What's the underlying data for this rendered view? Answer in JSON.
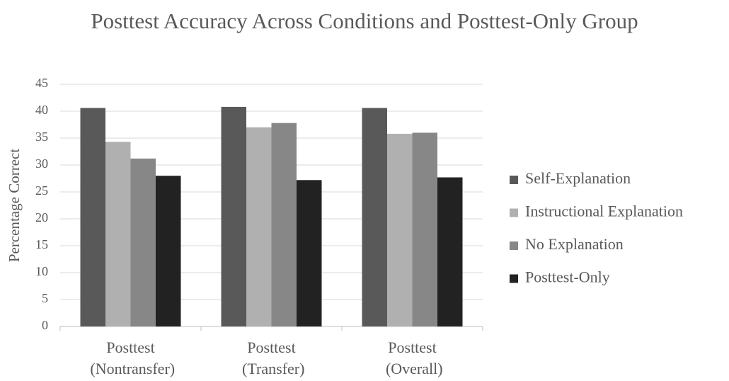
{
  "chart_data": {
    "type": "bar",
    "title": "Posttest Accuracy Across Conditions and Posttest-Only Group",
    "y_label": "Percentage Correct",
    "categories": [
      "Posttest (Nontransfer)",
      "Posttest (Transfer)",
      "Posttest (Overall)"
    ],
    "series": [
      {
        "name": "Self-Explanation",
        "color": "#595959",
        "values": [
          40.6,
          40.8,
          40.6
        ]
      },
      {
        "name": "Instructional Explanation",
        "color": "#b0b0b0",
        "values": [
          34.3,
          37.0,
          35.8
        ]
      },
      {
        "name": "No Explanation",
        "color": "#878787",
        "values": [
          31.2,
          37.8,
          36.0
        ]
      },
      {
        "name": "Posttest-Only",
        "color": "#222222",
        "values": [
          28.0,
          27.2,
          27.7
        ]
      }
    ],
    "ylim": [
      0,
      45
    ],
    "yticks": [
      0,
      5,
      10,
      15,
      20,
      25,
      30,
      35,
      40,
      45
    ],
    "grid": true,
    "legend": "right"
  }
}
